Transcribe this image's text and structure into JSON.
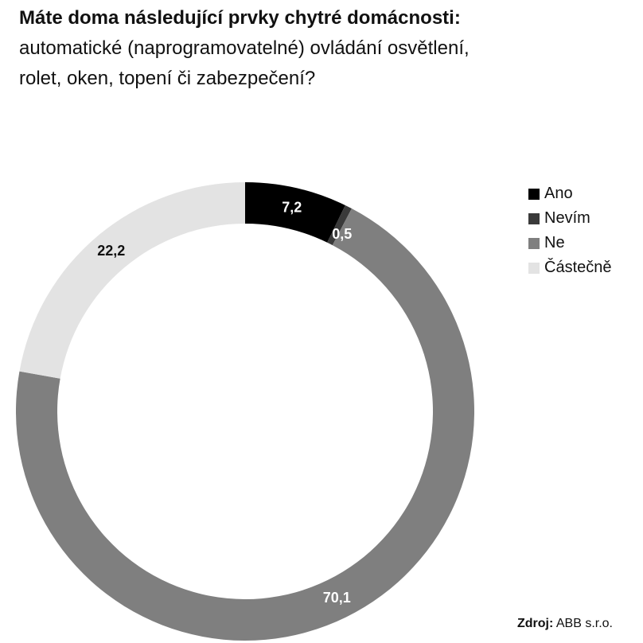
{
  "title": {
    "bold": "Máte doma následující prvky chytré domácnosti:",
    "rest": "automatické (naprogramovatelné) ovládání osvětlení, rolet, oken, topení či zabezpečení?"
  },
  "source": {
    "label": "Zdroj:",
    "value": "ABB s.r.o."
  },
  "chart_data": {
    "type": "pie",
    "variant": "donut",
    "start": "top, clockwise",
    "legend_position": "top-right",
    "categories": [
      "Ano",
      "Nevím",
      "Ne",
      "Částečně"
    ],
    "values": [
      7.2,
      0.5,
      70.1,
      22.2
    ],
    "data_labels": [
      "7,2",
      "0,5",
      "70,1",
      "22,2"
    ],
    "colors": [
      "#000000",
      "#3a3a3a",
      "#7f7f7f",
      "#e3e3e3"
    ],
    "label_colors": [
      "#ffffff",
      "#ffffff",
      "#ffffff",
      "#111111"
    ]
  }
}
